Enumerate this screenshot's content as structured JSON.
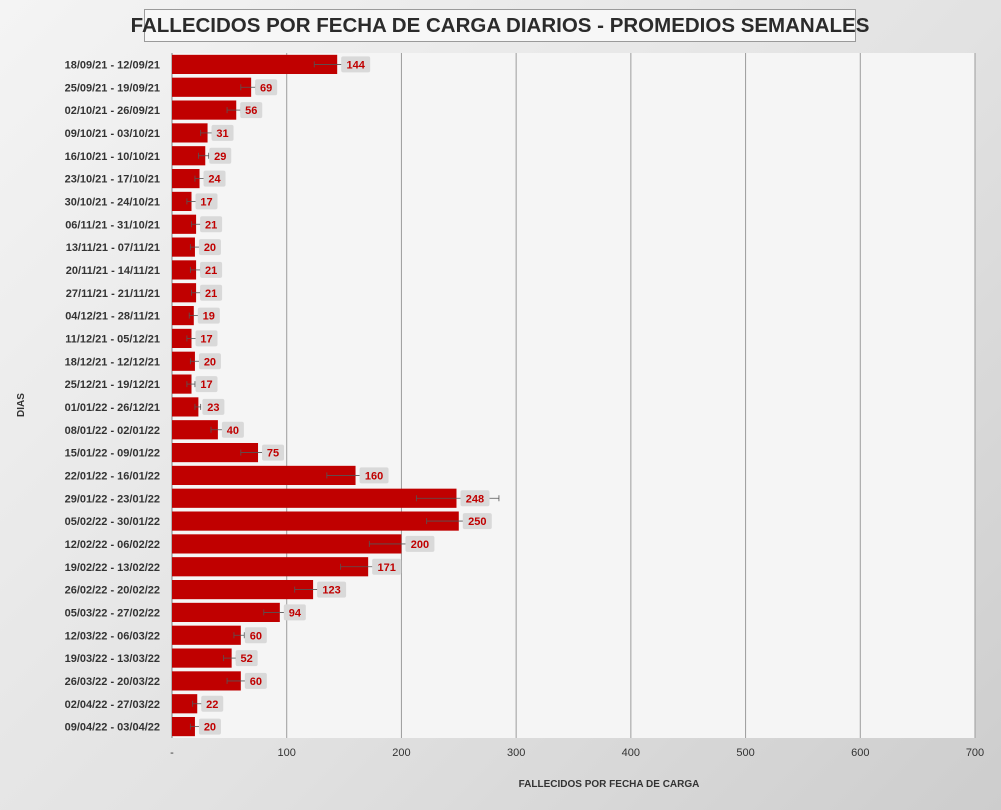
{
  "chart_data": {
    "type": "bar",
    "orientation": "horizontal",
    "title": "FALLECIDOS POR FECHA DE CARGA DIARIOS - PROMEDIOS SEMANALES",
    "xlabel": "FALLECIDOS POR FECHA DE CARGA",
    "ylabel": "DIAS",
    "xlim": [
      0,
      700
    ],
    "x_ticks": [
      "-",
      "100",
      "200",
      "300",
      "400",
      "500",
      "600",
      "700"
    ],
    "grid": "vertical",
    "legend": "none",
    "bar_color": "#c00000",
    "label_bg_color": "#d9d9d9",
    "label_color": "#c00000",
    "categories": [
      "18/09/21 - 12/09/21",
      "25/09/21 - 19/09/21",
      "02/10/21 - 26/09/21",
      "09/10/21 - 03/10/21",
      "16/10/21 - 10/10/21",
      "23/10/21 - 17/10/21",
      "30/10/21 - 24/10/21",
      "06/11/21 - 31/10/21",
      "13/11/21 - 07/11/21",
      "20/11/21 - 14/11/21",
      "27/11/21 - 21/11/21",
      "04/12/21 - 28/11/21",
      "11/12/21 - 05/12/21",
      "18/12/21 - 12/12/21",
      "25/12/21 - 19/12/21",
      "01/01/22 - 26/12/21",
      "08/01/22 - 02/01/22",
      "15/01/22 - 09/01/22",
      "22/01/22 - 16/01/22",
      "29/01/22 - 23/01/22",
      "05/02/22 - 30/01/22",
      "12/02/22 - 06/02/22",
      "19/02/22 - 13/02/22",
      "26/02/22 - 20/02/22",
      "05/03/22 - 27/02/22",
      "12/03/22 - 06/03/22",
      "19/03/22 - 13/03/22",
      "26/03/22 - 20/03/22",
      "02/04/22 - 27/03/22",
      "09/04/22 - 03/04/22"
    ],
    "values": [
      144,
      69,
      56,
      31,
      29,
      24,
      17,
      21,
      20,
      21,
      21,
      19,
      17,
      20,
      17,
      23,
      40,
      75,
      160,
      248,
      250,
      200,
      171,
      123,
      94,
      60,
      52,
      60,
      22,
      20
    ],
    "error_low": [
      124,
      60,
      48,
      25,
      23,
      20,
      13,
      17,
      16,
      16,
      17,
      15,
      13,
      16,
      13,
      20,
      34,
      60,
      135,
      213,
      222,
      172,
      147,
      107,
      80,
      54,
      45,
      48,
      18,
      16
    ],
    "error_high": [
      167,
      73,
      60,
      35,
      32,
      28,
      21,
      26,
      25,
      25,
      25,
      23,
      21,
      24,
      20,
      25,
      45,
      80,
      184,
      285,
      277,
      228,
      195,
      138,
      102,
      63,
      56,
      66,
      26,
      24
    ]
  }
}
